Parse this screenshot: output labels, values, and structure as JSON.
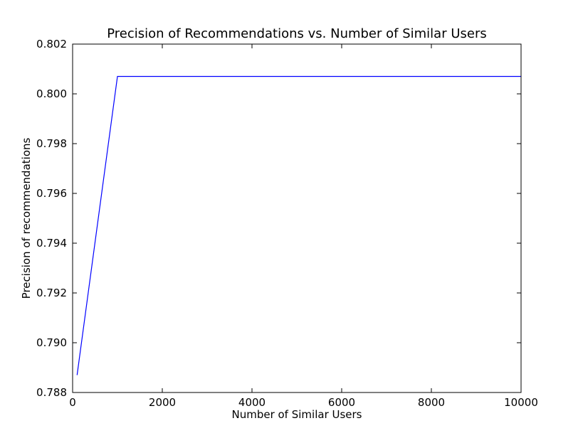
{
  "chart_data": {
    "type": "line",
    "title": "Precision of Recommendations vs. Number of Similar Users",
    "xlabel": "Number of Similar Users",
    "ylabel": "Precision of recommendations",
    "xlim": [
      0,
      10000
    ],
    "ylim": [
      0.788,
      0.802
    ],
    "xticks": [
      0,
      2000,
      4000,
      6000,
      8000,
      10000
    ],
    "xtick_labels": [
      "0",
      "2000",
      "4000",
      "6000",
      "8000",
      "10000"
    ],
    "yticks": [
      0.788,
      0.79,
      0.792,
      0.794,
      0.796,
      0.798,
      0.8,
      0.802
    ],
    "ytick_labels": [
      "0.788",
      "0.790",
      "0.792",
      "0.794",
      "0.796",
      "0.798",
      "0.800",
      "0.802"
    ],
    "grid": false,
    "legend": "none",
    "series": [
      {
        "color": "#0000ff",
        "x": [
          100,
          1000,
          10000
        ],
        "y": [
          0.7887,
          0.8007,
          0.8007
        ]
      }
    ]
  }
}
